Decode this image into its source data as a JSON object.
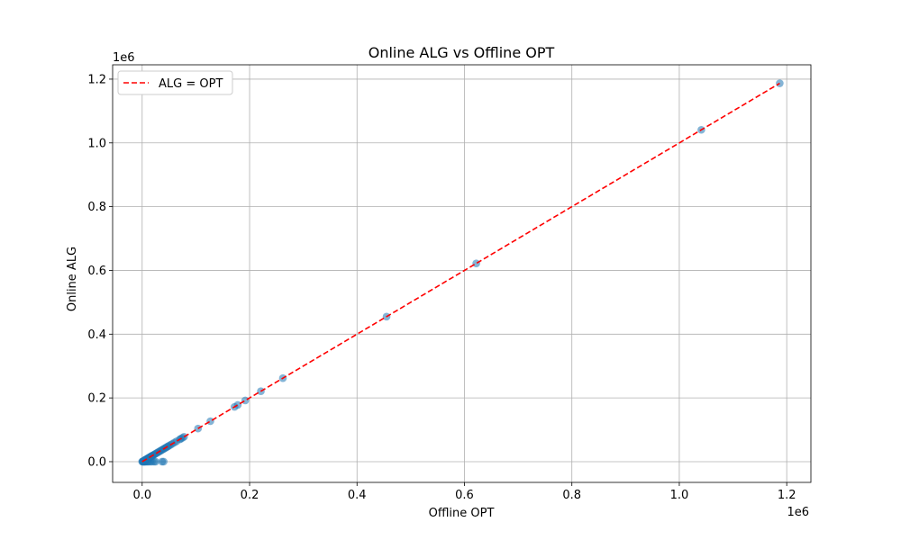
{
  "chart_data": {
    "type": "scatter",
    "title": "Online ALG vs Offline OPT",
    "xlabel": "Offline OPT",
    "ylabel": "Online ALG",
    "x_offset_label": "1e6",
    "y_offset_label": "1e6",
    "xlim": [
      -55000,
      1245000
    ],
    "ylim": [
      -65000,
      1245000
    ],
    "xticks": [
      0,
      200000,
      400000,
      600000,
      800000,
      1000000,
      1200000
    ],
    "xtick_labels": [
      "0.0",
      "0.2",
      "0.4",
      "0.6",
      "0.8",
      "1.0",
      "1.2"
    ],
    "yticks": [
      0,
      200000,
      400000,
      600000,
      800000,
      1000000,
      1200000
    ],
    "ytick_labels": [
      "0.0",
      "0.2",
      "0.4",
      "0.6",
      "0.8",
      "1.0",
      "1.2"
    ],
    "grid": true,
    "legend": {
      "position": "top-left",
      "entries": [
        "ALG = OPT"
      ]
    },
    "reference_line": {
      "name": "ALG = OPT",
      "color": "#ff0000",
      "style": "dashed",
      "x": [
        0,
        1187000
      ],
      "y": [
        0,
        1187000
      ]
    },
    "series": [
      {
        "marker_color": "#1f77b4",
        "points": [
          [
            0,
            0
          ],
          [
            1000,
            0
          ],
          [
            2000,
            0
          ],
          [
            3000,
            0
          ],
          [
            4000,
            0
          ],
          [
            5000,
            0
          ],
          [
            6000,
            0
          ],
          [
            8000,
            0
          ],
          [
            10000,
            0
          ],
          [
            12000,
            0
          ],
          [
            15000,
            0
          ],
          [
            18000,
            0
          ],
          [
            22000,
            0
          ],
          [
            25000,
            0
          ],
          [
            37000,
            0
          ],
          [
            40000,
            0
          ],
          [
            1000,
            1000
          ],
          [
            2000,
            2000
          ],
          [
            3000,
            3000
          ],
          [
            4000,
            4000
          ],
          [
            5000,
            5000
          ],
          [
            6000,
            6000
          ],
          [
            7000,
            7000
          ],
          [
            8000,
            8000
          ],
          [
            9000,
            9000
          ],
          [
            10000,
            10000
          ],
          [
            11000,
            11000
          ],
          [
            12000,
            12000
          ],
          [
            13000,
            13000
          ],
          [
            14000,
            14000
          ],
          [
            15000,
            15000
          ],
          [
            16000,
            16000
          ],
          [
            17000,
            17000
          ],
          [
            18000,
            18000
          ],
          [
            19000,
            19000
          ],
          [
            20000,
            20000
          ],
          [
            22000,
            22000
          ],
          [
            24000,
            24000
          ],
          [
            26000,
            26000
          ],
          [
            28000,
            28000
          ],
          [
            30000,
            30000
          ],
          [
            32000,
            32000
          ],
          [
            34000,
            34000
          ],
          [
            36000,
            36000
          ],
          [
            38000,
            38000
          ],
          [
            40000,
            40000
          ],
          [
            42000,
            42000
          ],
          [
            44000,
            44000
          ],
          [
            46000,
            46000
          ],
          [
            48000,
            48000
          ],
          [
            50000,
            50000
          ],
          [
            53000,
            53000
          ],
          [
            56000,
            56000
          ],
          [
            60000,
            60000
          ],
          [
            64000,
            64000
          ],
          [
            70000,
            70000
          ],
          [
            72000,
            72000
          ],
          [
            75000,
            75000
          ],
          [
            78000,
            78000
          ],
          [
            104000,
            104000
          ],
          [
            127000,
            127000
          ],
          [
            172000,
            172000
          ],
          [
            178000,
            178000
          ],
          [
            192000,
            192000
          ],
          [
            221000,
            221000
          ],
          [
            262000,
            262000
          ],
          [
            455000,
            455000
          ],
          [
            622000,
            622000
          ],
          [
            1041000,
            1041000
          ],
          [
            1187000,
            1187000
          ]
        ]
      }
    ]
  }
}
